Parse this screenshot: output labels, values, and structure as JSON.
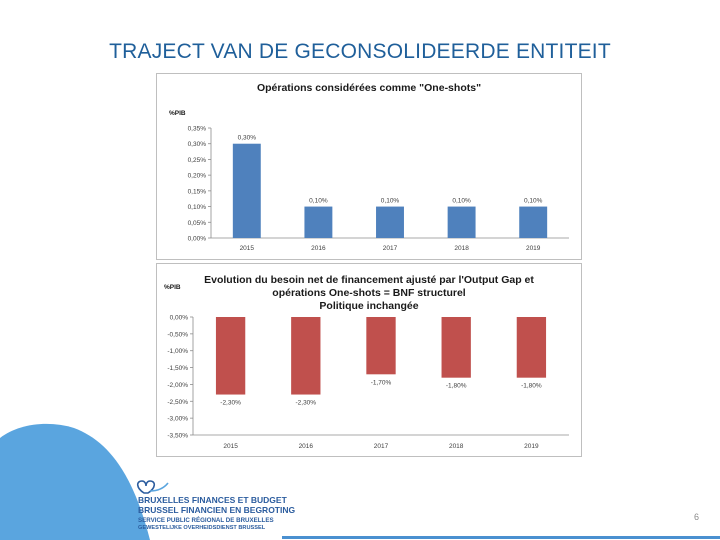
{
  "slide": {
    "title": "TRAJECT VAN DE GECONSOLIDEERDE ENTITEIT",
    "page_number": "6"
  },
  "logo": {
    "line1": "BRUXELLES FINANCES ET BUDGET",
    "line2": "BRUSSEL FINANCIEN EN BEGROTING",
    "line3": "SERVICE PUBLIC RÉGIONAL DE BRUXELLES",
    "line4": "GEWESTELIJKE OVERHEIDSDIENST BRUSSEL"
  },
  "colors": {
    "title": "#1f5f9a",
    "series1": "#4f81bd",
    "series2": "#c0504d",
    "wave": "#5aa5df"
  },
  "chart_data": [
    {
      "type": "bar",
      "title": "Opérations considérées comme \"One-shots\"",
      "ylabel": "%PIB",
      "categories": [
        "2015",
        "2016",
        "2017",
        "2018",
        "2019"
      ],
      "values": [
        0.3,
        0.1,
        0.1,
        0.1,
        0.1
      ],
      "value_labels": [
        "0,30%",
        "0,10%",
        "0,10%",
        "0,10%",
        "0,10%"
      ],
      "ylim": [
        0,
        0.35
      ],
      "yticks": [
        0,
        0.05,
        0.1,
        0.15,
        0.2,
        0.25,
        0.3,
        0.35
      ],
      "ytick_labels": [
        "0,00%",
        "0,05%",
        "0,10%",
        "0,15%",
        "0,20%",
        "0,25%",
        "0,30%",
        "0,35%"
      ],
      "grid": false,
      "legend": "none"
    },
    {
      "type": "bar",
      "title_lines": [
        "Evolution du besoin net de financement ajusté par l'Output Gap et",
        "opérations One-shots = BNF structurel",
        "Politique inchangée"
      ],
      "ylabel": "%PIB",
      "categories": [
        "2015",
        "2016",
        "2017",
        "2018",
        "2019"
      ],
      "values": [
        -2.3,
        -2.3,
        -1.7,
        -1.8,
        -1.8
      ],
      "value_labels": [
        "-2,30%",
        "-2,30%",
        "-1,70%",
        "-1,80%",
        "-1,80%"
      ],
      "ylim": [
        -3.5,
        0
      ],
      "yticks": [
        0,
        -0.5,
        -1.0,
        -1.5,
        -2.0,
        -2.5,
        -3.0,
        -3.5
      ],
      "ytick_labels": [
        "0,00%",
        "-0,50%",
        "-1,00%",
        "-1,50%",
        "-2,00%",
        "-2,50%",
        "-3,00%",
        "-3,50%"
      ],
      "grid": false,
      "legend": "none"
    }
  ]
}
